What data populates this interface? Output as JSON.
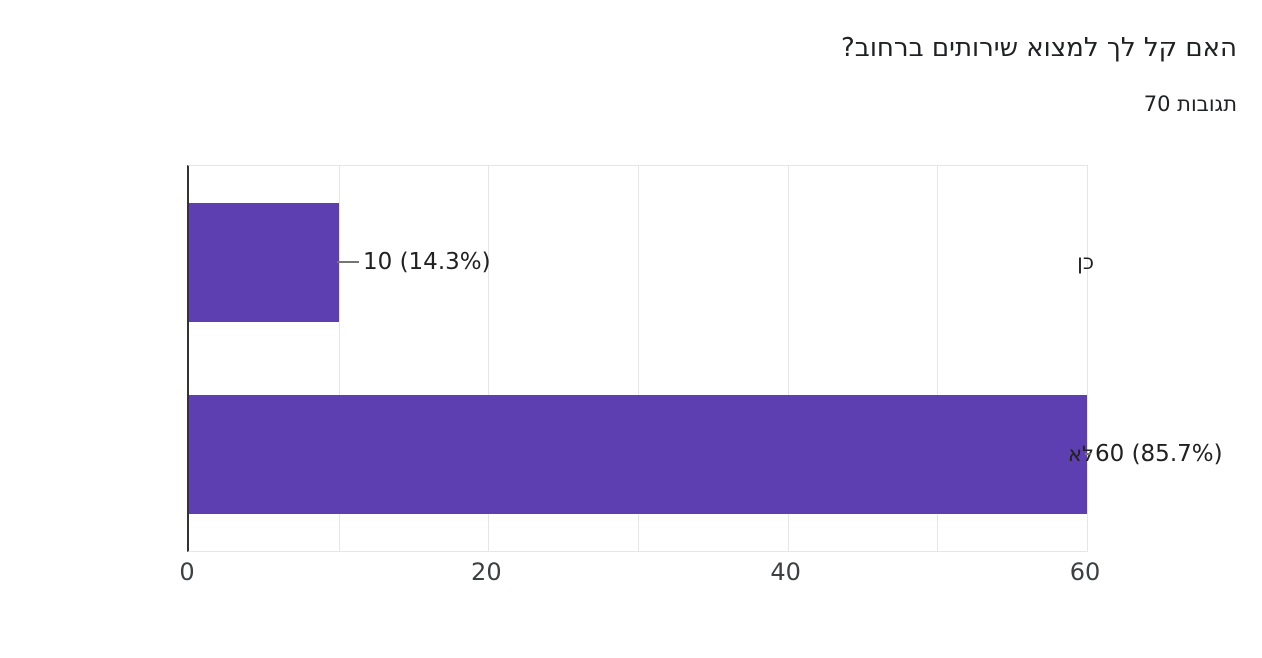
{
  "header": {
    "title": "האם קל לך למצוא שירותים ברחוב?",
    "responses": "70 תגובות"
  },
  "chart_data": {
    "type": "bar",
    "orientation": "horizontal",
    "title": "האם קל לך למצוא שירותים ברחוב?",
    "subtitle": "70 תגובות",
    "total_responses": 70,
    "categories": [
      "כן",
      "לא"
    ],
    "values": [
      10,
      60
    ],
    "percentages": [
      14.3,
      85.7
    ],
    "value_labels": [
      "10 (14.3%)",
      "60 (85.7%)"
    ],
    "xlim": [
      0,
      60
    ],
    "xticks": [
      0,
      20,
      40,
      60
    ],
    "gridline_step": 10,
    "grid": true,
    "legend": false,
    "colors": {
      "bar": "#5D3FB2",
      "axis": "#333333",
      "gridline": "#e6e6e6",
      "plot_border": "#e6e6e6",
      "text": "#212121",
      "title_text": "#202124",
      "tick_text": "#3c4043",
      "connector": "#757575",
      "background": "#ffffff"
    }
  }
}
